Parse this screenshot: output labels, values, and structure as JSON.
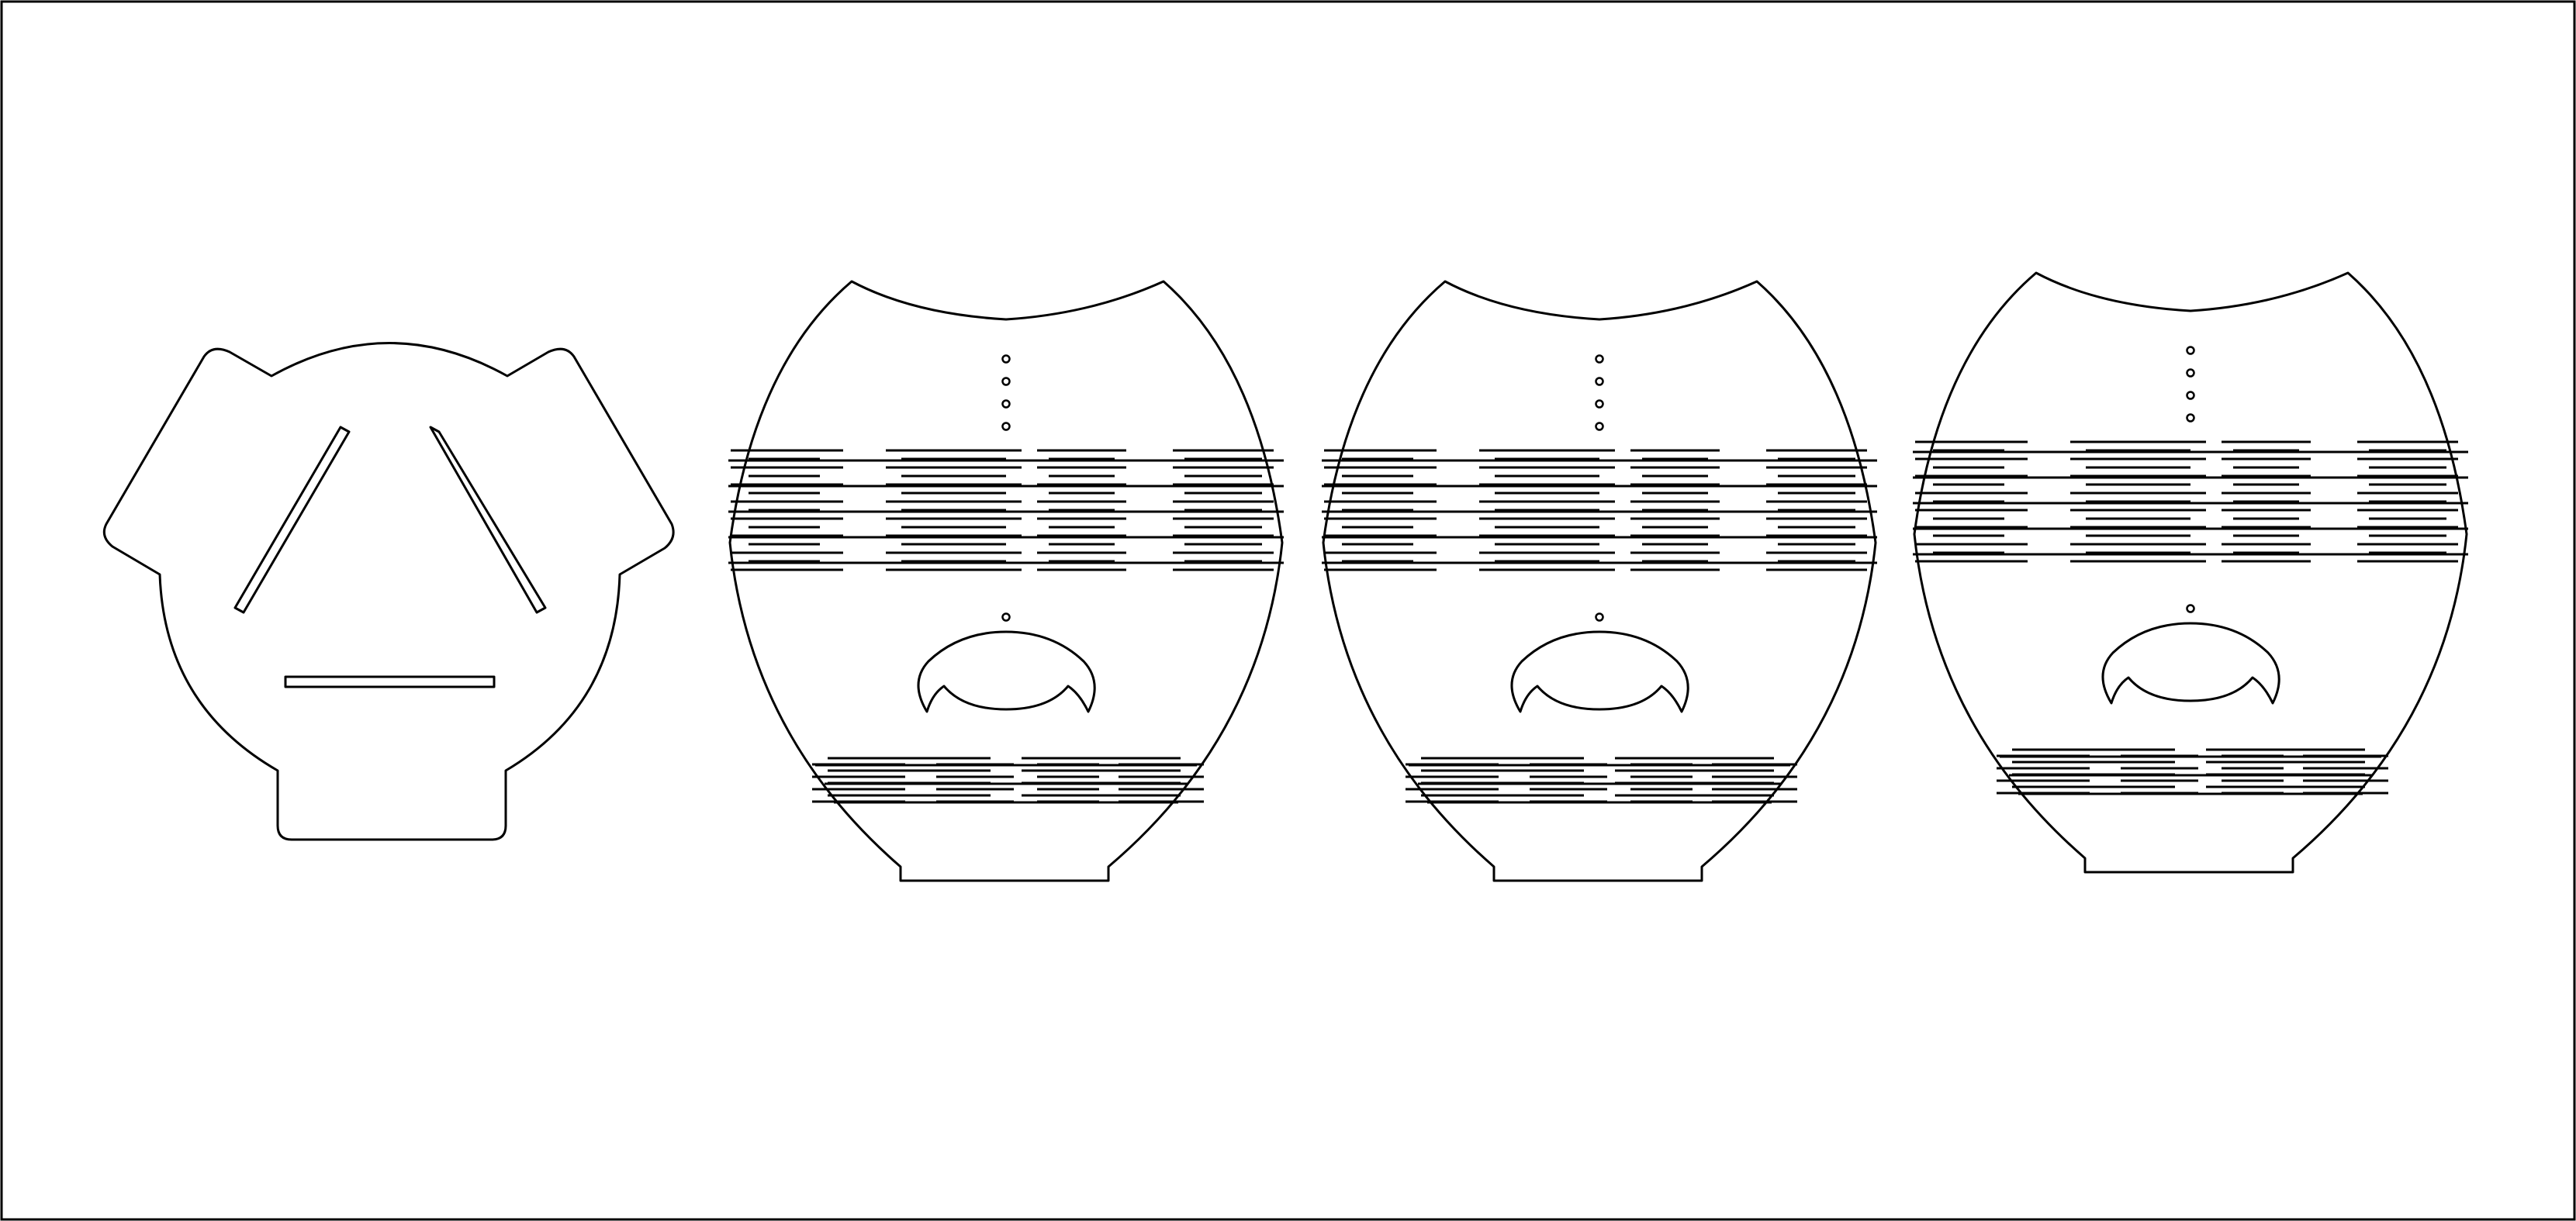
{
  "drawing": {
    "stroke_color": "#000000",
    "background_color": "#ffffff",
    "parts": [
      {
        "id": "base-plate",
        "kind": "base"
      },
      {
        "id": "panel-1",
        "kind": "panel"
      },
      {
        "id": "panel-2",
        "kind": "panel"
      },
      {
        "id": "panel-3",
        "kind": "panel"
      }
    ],
    "panel_hole_count": 5,
    "base_slot_count": 3
  }
}
